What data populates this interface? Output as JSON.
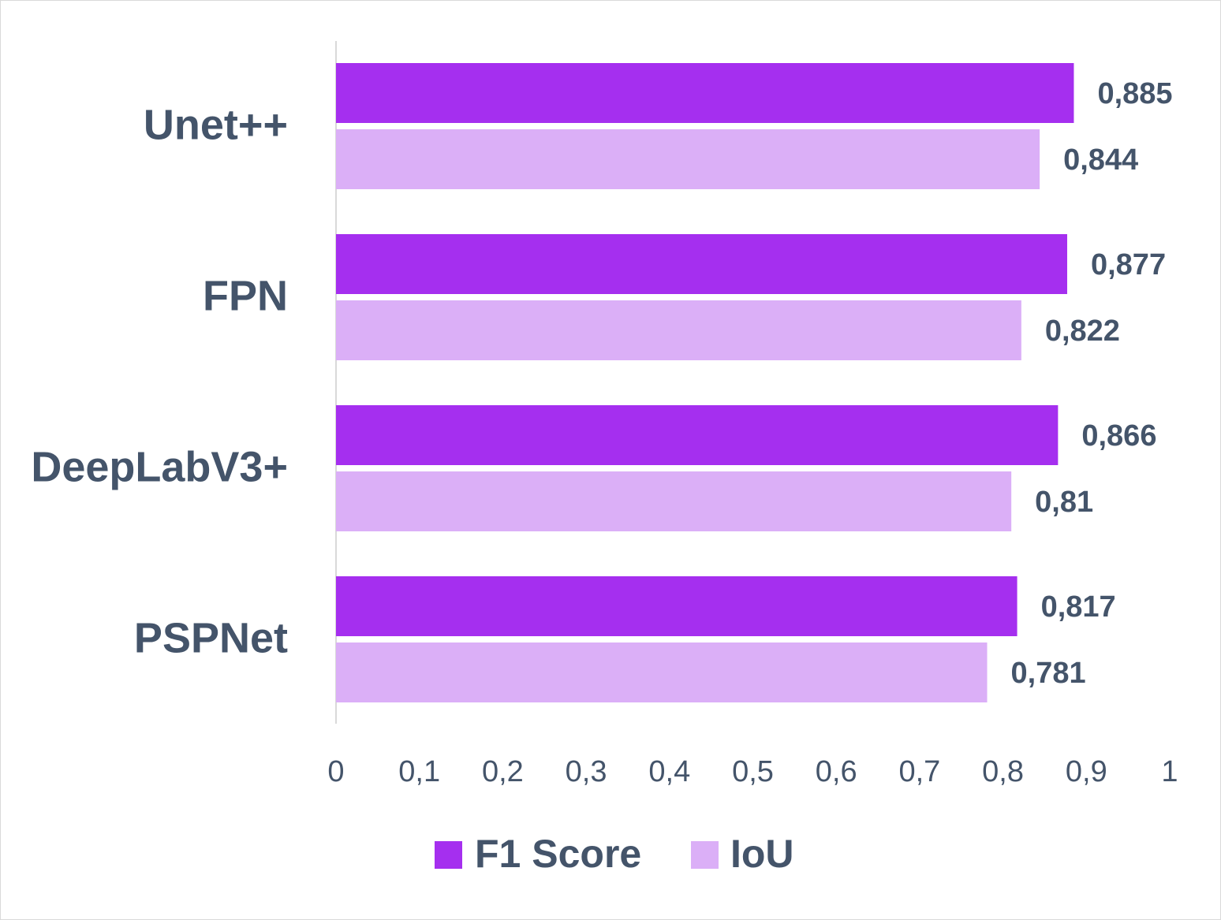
{
  "chart_data": {
    "type": "bar",
    "orientation": "horizontal",
    "categories": [
      "Unet++",
      "FPN",
      "DeepLabV3+",
      "PSPNet"
    ],
    "series": [
      {
        "name": "F1 Score",
        "color": "#a52fef",
        "values": [
          0.885,
          0.877,
          0.866,
          0.817
        ],
        "labels": [
          "0,885",
          "0,877",
          "0,866",
          "0,817"
        ]
      },
      {
        "name": "IoU",
        "color": "#dbaff7",
        "values": [
          0.844,
          0.822,
          0.81,
          0.781
        ],
        "labels": [
          "0,844",
          "0,822",
          "0,81",
          "0,781"
        ]
      }
    ],
    "xlim": [
      0,
      1
    ],
    "x_ticks": [
      0,
      0.1,
      0.2,
      0.3,
      0.4,
      0.5,
      0.6,
      0.7,
      0.8,
      0.9,
      1
    ],
    "x_tick_labels": [
      "0",
      "0,1",
      "0,2",
      "0,3",
      "0,4",
      "0,5",
      "0,6",
      "0,7",
      "0,8",
      "0,9",
      "1"
    ],
    "grid": false,
    "legend_position": "bottom",
    "title": "",
    "xlabel": "",
    "ylabel": ""
  }
}
